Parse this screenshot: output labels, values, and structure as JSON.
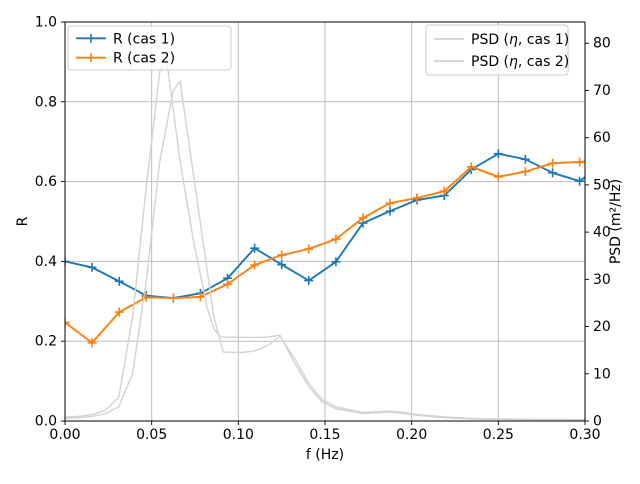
{
  "figure": {
    "background": "#ffffff"
  },
  "chart_data": {
    "type": "line",
    "title": "",
    "xlabel": "f (Hz)",
    "ylabel_left": "R",
    "ylabel_right": "PSD (m²/Hz)",
    "xlim": [
      0,
      0.3
    ],
    "ylim_left": [
      0.0,
      1.0
    ],
    "ylim_right": [
      0,
      84.5
    ],
    "grid": true,
    "grid_color": "#bdbdbd",
    "spine_color": "#000000",
    "xticks": {
      "values": [
        0.0,
        0.05,
        0.1,
        0.15,
        0.2,
        0.25,
        0.3
      ],
      "labels": [
        "0.00",
        "0.05",
        "0.10",
        "0.15",
        "0.20",
        "0.25",
        "0.30"
      ]
    },
    "yticks_left": {
      "values": [
        0.0,
        0.2,
        0.4,
        0.6,
        0.8,
        1.0
      ],
      "labels": [
        "0.0",
        "0.2",
        "0.4",
        "0.6",
        "0.8",
        "1.0"
      ]
    },
    "yticks_right": {
      "values": [
        0,
        10,
        20,
        30,
        40,
        50,
        60,
        70,
        80
      ],
      "labels": [
        "0",
        "10",
        "20",
        "30",
        "40",
        "50",
        "60",
        "70",
        "80"
      ]
    },
    "x": [
      0.0,
      0.0156,
      0.0313,
      0.0469,
      0.0625,
      0.0781,
      0.0938,
      0.1094,
      0.125,
      0.1406,
      0.1563,
      0.1719,
      0.1875,
      0.2031,
      0.2188,
      0.2344,
      0.25,
      0.2656,
      0.2813,
      0.2969
    ],
    "series": [
      {
        "name": "R (cas 1)",
        "axis": "left",
        "color": "#1f77b4",
        "marker": "+",
        "values": [
          0.4,
          0.385,
          0.35,
          0.314,
          0.308,
          0.32,
          0.358,
          0.433,
          0.392,
          0.352,
          0.399,
          0.496,
          0.526,
          0.554,
          0.565,
          0.63,
          0.67,
          0.656,
          0.622,
          0.601
        ],
        "end_segment": [
          0.3,
          0.611
        ]
      },
      {
        "name": "R (cas 2)",
        "axis": "left",
        "color": "#ff7f0e",
        "marker": "+",
        "values": [
          0.247,
          0.196,
          0.273,
          0.31,
          0.308,
          0.311,
          0.343,
          0.391,
          0.416,
          0.431,
          0.456,
          0.509,
          0.546,
          0.559,
          0.576,
          0.637,
          0.612,
          0.625,
          0.646,
          0.649
        ],
        "end_segment": [
          0.3,
          0.651
        ]
      },
      {
        "name": "PSD (η, cas 1)",
        "axis": "right",
        "color": "#d3d3d3",
        "marker": "",
        "points": [
          [
            0.0,
            0.8
          ],
          [
            0.008,
            1.0
          ],
          [
            0.016,
            1.4
          ],
          [
            0.023,
            2.2
          ],
          [
            0.031,
            5.0
          ],
          [
            0.039,
            22
          ],
          [
            0.047,
            50
          ],
          [
            0.0547,
            74
          ],
          [
            0.0586,
            76.5
          ],
          [
            0.0664,
            55
          ],
          [
            0.0742,
            38
          ],
          [
            0.0781,
            31
          ],
          [
            0.082,
            24
          ],
          [
            0.0859,
            19.5
          ],
          [
            0.0898,
            17.8
          ],
          [
            0.1094,
            17.7
          ],
          [
            0.1172,
            17.8
          ],
          [
            0.124,
            18.2
          ],
          [
            0.1328,
            12
          ],
          [
            0.1406,
            7.3
          ],
          [
            0.1484,
            4.0
          ],
          [
            0.1563,
            2.6
          ],
          [
            0.1719,
            1.6
          ],
          [
            0.1875,
            1.9
          ],
          [
            0.1953,
            1.6
          ],
          [
            0.2031,
            1.2
          ],
          [
            0.2188,
            0.7
          ],
          [
            0.2344,
            0.45
          ],
          [
            0.2656,
            0.3
          ],
          [
            0.3,
            0.25
          ]
        ]
      },
      {
        "name": "PSD (η, cas 2)",
        "axis": "right",
        "color": "#d3d3d3",
        "marker": "",
        "points": [
          [
            0.0,
            0.5
          ],
          [
            0.008,
            0.7
          ],
          [
            0.016,
            1.0
          ],
          [
            0.023,
            1.5
          ],
          [
            0.031,
            3.0
          ],
          [
            0.039,
            10
          ],
          [
            0.047,
            30
          ],
          [
            0.0547,
            55
          ],
          [
            0.0625,
            70
          ],
          [
            0.0664,
            72
          ],
          [
            0.0742,
            52
          ],
          [
            0.082,
            32
          ],
          [
            0.0859,
            22
          ],
          [
            0.0913,
            14.6
          ],
          [
            0.1016,
            14.5
          ],
          [
            0.1094,
            14.8
          ],
          [
            0.1172,
            16.0
          ],
          [
            0.124,
            18.0
          ],
          [
            0.1328,
            13
          ],
          [
            0.1406,
            8.0
          ],
          [
            0.1484,
            4.5
          ],
          [
            0.1563,
            3.0
          ],
          [
            0.1719,
            1.8
          ],
          [
            0.1875,
            2.1
          ],
          [
            0.1953,
            1.8
          ],
          [
            0.2031,
            1.4
          ],
          [
            0.2188,
            0.9
          ],
          [
            0.2344,
            0.55
          ],
          [
            0.2656,
            0.35
          ],
          [
            0.3,
            0.3
          ]
        ]
      }
    ],
    "legends": [
      {
        "position": "upper-left",
        "entries": [
          {
            "label": "R (cas 1)",
            "color": "#1f77b4",
            "marker": "+"
          },
          {
            "label": "R (cas 2)",
            "color": "#ff7f0e",
            "marker": "+"
          }
        ]
      },
      {
        "position": "upper-right",
        "entries": [
          {
            "label": "PSD (η, cas 1)",
            "color": "#d3d3d3",
            "marker": ""
          },
          {
            "label": "PSD (η, cas 2)",
            "color": "#d3d3d3",
            "marker": ""
          }
        ]
      }
    ]
  }
}
